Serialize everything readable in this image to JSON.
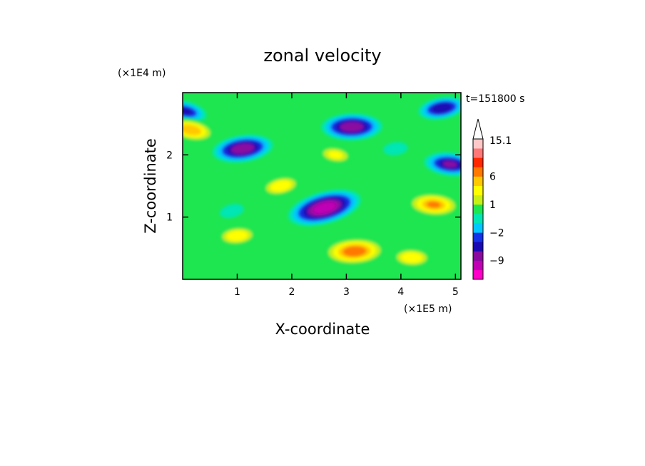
{
  "chart_data": {
    "type": "heatmap",
    "title": "zonal velocity",
    "xlabel": "X-coordinate",
    "ylabel": "Z-coordinate",
    "x_scale_label": "(×1E5 m)",
    "y_scale_label": "(×1E4 m)",
    "time_label": "t=151800 s",
    "xlim": [
      0,
      5.1
    ],
    "ylim": [
      0,
      3.0
    ],
    "x_ticks": [
      1,
      2,
      3,
      4,
      5
    ],
    "y_ticks": [
      1,
      2
    ],
    "colorbar": {
      "levels": [
        -15,
        -12,
        -9,
        -6,
        -4,
        -2,
        -1,
        0,
        1,
        2,
        4,
        6,
        9,
        12,
        15.1
      ],
      "tick_labels": [
        "15.1",
        "6",
        "1",
        "−2",
        "−9"
      ],
      "tick_values": [
        15.1,
        6,
        1,
        -2,
        -9
      ],
      "colors": [
        "#ff00c8",
        "#c000b4",
        "#8a0aa0",
        "#1a0ab4",
        "#1432e6",
        "#00c8ff",
        "#00e6b4",
        "#1ee650",
        "#c8f014",
        "#ffff00",
        "#ffc800",
        "#ff7800",
        "#ff2800",
        "#ff7878",
        "#ffc8c8"
      ],
      "extend_top": true
    },
    "features": [
      {
        "x": 2.6,
        "z": 1.15,
        "u": -12
      },
      {
        "x": 1.1,
        "z": 2.1,
        "u": -9
      },
      {
        "x": 3.1,
        "z": 2.45,
        "u": -9
      },
      {
        "x": 4.9,
        "z": 1.85,
        "u": -7
      },
      {
        "x": 0.05,
        "z": 2.7,
        "u": -5
      },
      {
        "x": 4.75,
        "z": 2.75,
        "u": -6
      },
      {
        "x": 3.15,
        "z": 0.45,
        "u": 9
      },
      {
        "x": 4.6,
        "z": 1.2,
        "u": 7
      },
      {
        "x": 0.15,
        "z": 2.4,
        "u": 6
      },
      {
        "x": 1.8,
        "z": 1.5,
        "u": 4
      },
      {
        "x": 1.0,
        "z": 0.7,
        "u": 4
      },
      {
        "x": 4.2,
        "z": 0.35,
        "u": 4
      },
      {
        "x": 2.8,
        "z": 2.0,
        "u": 3
      },
      {
        "x": 0.9,
        "z": 1.1,
        "u": -1
      },
      {
        "x": 3.9,
        "z": 2.1,
        "u": -1
      }
    ]
  }
}
